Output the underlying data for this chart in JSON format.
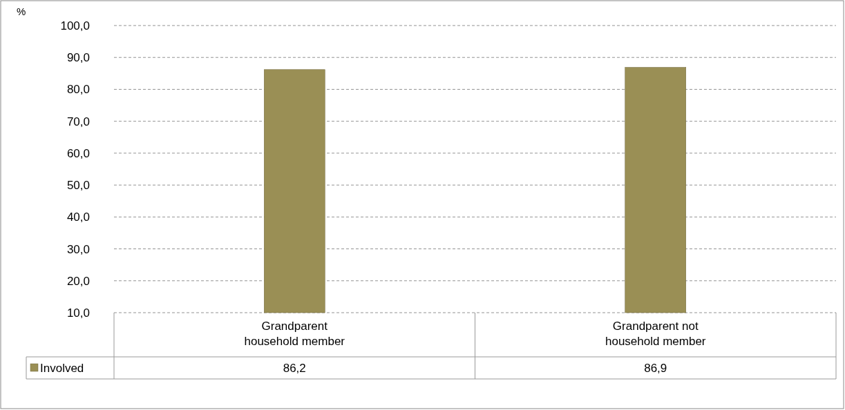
{
  "chart_data": {
    "type": "bar",
    "ylabel": "%",
    "categories": [
      "Grandparent household member",
      "Grandparent not household member"
    ],
    "series": [
      {
        "name": "Involved",
        "color": "#9a8f55",
        "values": [
          86.2,
          86.9
        ],
        "value_labels": [
          "86,2",
          "86,9"
        ]
      }
    ],
    "ylim": [
      10,
      100
    ],
    "yticks": [
      {
        "value": 10,
        "label": "10,0"
      },
      {
        "value": 20,
        "label": "20,0"
      },
      {
        "value": 30,
        "label": "30,0"
      },
      {
        "value": 40,
        "label": "40,0"
      },
      {
        "value": 50,
        "label": "50,0"
      },
      {
        "value": 60,
        "label": "60,0"
      },
      {
        "value": 70,
        "label": "70,0"
      },
      {
        "value": 80,
        "label": "80,0"
      },
      {
        "value": 90,
        "label": "90,0"
      },
      {
        "value": 100,
        "label": "100,0"
      }
    ],
    "grid": "y",
    "legend": "bottom left"
  }
}
